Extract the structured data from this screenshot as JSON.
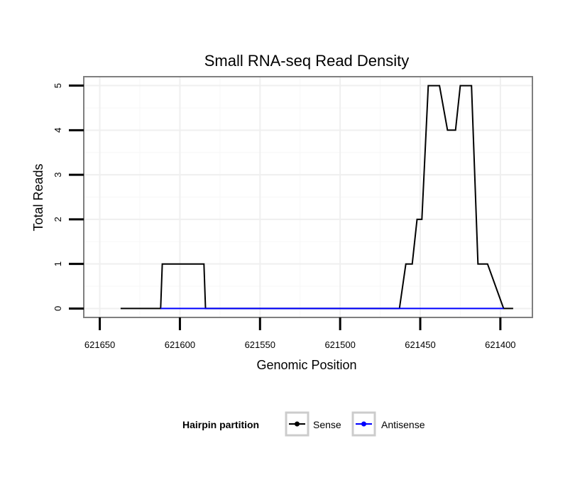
{
  "chart_data": {
    "type": "line",
    "title": "Small RNA-seq Read Density",
    "xlabel": "Genomic Position",
    "ylabel": "Total Reads",
    "x_reversed": true,
    "xlim": [
      621660,
      621380
    ],
    "ylim": [
      -0.2,
      5.2
    ],
    "x_ticks": [
      621650,
      621600,
      621550,
      621500,
      621450,
      621400
    ],
    "x_tick_labels": [
      "621650",
      "621600",
      "621550",
      "621500",
      "621450",
      "621400"
    ],
    "y_ticks": [
      0,
      1,
      2,
      3,
      4,
      5
    ],
    "y_tick_labels": [
      "0",
      "1",
      "2",
      "3",
      "4",
      "5"
    ],
    "grid": true,
    "series": [
      {
        "name": "Sense",
        "color": "#000000",
        "step": true,
        "x": [
          621637,
          621612,
          621611,
          621585,
          621584,
          621517,
          621463,
          621459,
          621455,
          621452,
          621449,
          621445,
          621438,
          621433,
          621428,
          621425,
          621418,
          621414,
          621408,
          621398,
          621396,
          621392
        ],
        "y": [
          0,
          0,
          1,
          1,
          0,
          0,
          0,
          1,
          1,
          2,
          2,
          5,
          5,
          4,
          4,
          5,
          5,
          1,
          1,
          0,
          0,
          0
        ]
      },
      {
        "name": "Antisense",
        "color": "#0000ff",
        "step": true,
        "x": [
          621612,
          621584,
          621463,
          621398
        ],
        "y": [
          0,
          0,
          0,
          0
        ]
      }
    ],
    "legend": {
      "title": "Hairpin partition",
      "position": "bottom",
      "entries": [
        {
          "label": "Sense",
          "color": "#000000"
        },
        {
          "label": "Antisense",
          "color": "#0000ff"
        }
      ]
    }
  }
}
